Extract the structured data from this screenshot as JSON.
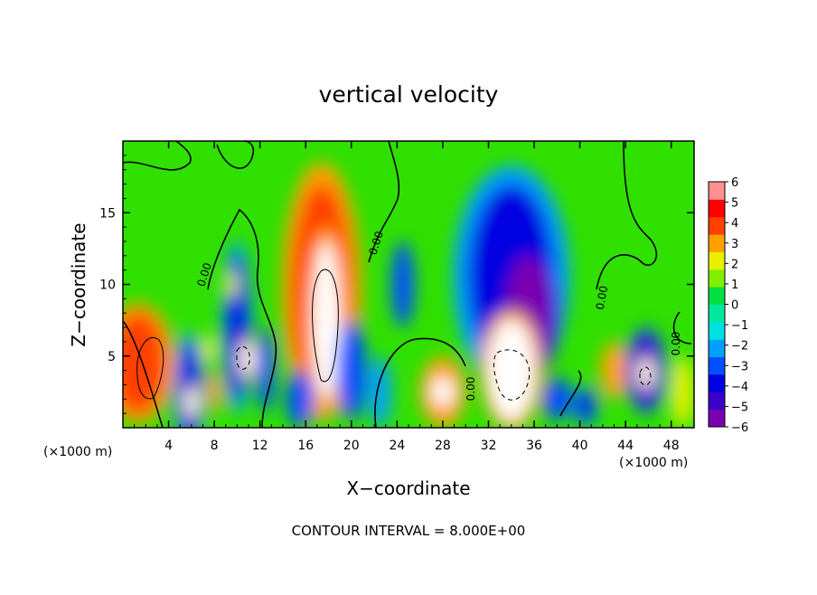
{
  "chart_data": {
    "type": "heatmap",
    "title": "vertical velocity",
    "xlabel": "X−coordinate",
    "ylabel": "Z−coordinate",
    "x_unit_label": "(×1000 m)",
    "y_unit_label": "(×1000 m)",
    "xlim": [
      0,
      50
    ],
    "ylim": [
      0,
      20
    ],
    "x_ticks": [
      4,
      8,
      12,
      16,
      20,
      24,
      28,
      32,
      36,
      40,
      44,
      48
    ],
    "y_ticks": [
      5,
      10,
      15
    ],
    "colorbar": {
      "min": -6,
      "max": 6,
      "ticks": [
        6,
        5,
        4,
        3,
        2,
        1,
        0,
        -1,
        -2,
        -3,
        -4,
        -5,
        -6
      ],
      "tick_labels": [
        "6",
        "5",
        "4",
        "3",
        "2",
        "1",
        "0",
        "−1",
        "−2",
        "−3",
        "−4",
        "−5",
        "−6"
      ],
      "colors": [
        "#7a00b0",
        "#3a00c8",
        "#0000e0",
        "#0050ff",
        "#00a0ff",
        "#00e0e0",
        "#00e8a0",
        "#00e040",
        "#80f000",
        "#e8f000",
        "#ffa000",
        "#ff4000",
        "#ff0000",
        "#ff9090"
      ]
    },
    "contour_interval_label": "CONTOUR INTERVAL = 8.000E+00",
    "contour_labels": [
      "0.00",
      "0.00",
      "0.00",
      "0.00",
      "0.00"
    ],
    "cells": [
      {
        "x": 2,
        "z": 4.5,
        "w": -0.0,
        "sx": 1.6,
        "sz": 2.5,
        "v": 6
      },
      {
        "x": 1.3,
        "z": 4.5,
        "sx": 2.4,
        "sz": 3.5,
        "v": 5
      },
      {
        "x": 5.8,
        "z": 2.5,
        "sx": 1.0,
        "sz": 3.5,
        "v": -4
      },
      {
        "x": 6.0,
        "z": 1.8,
        "sx": 0.5,
        "sz": 1.0,
        "v": 6
      },
      {
        "x": 8.0,
        "z": 2.5,
        "sx": 0.6,
        "sz": 1.5,
        "v": 4
      },
      {
        "x": 7.5,
        "z": 5.5,
        "sx": 0.6,
        "sz": 1.0,
        "v": 3
      },
      {
        "x": 10.0,
        "z": 7.0,
        "sx": 1.0,
        "sz": 5.0,
        "v": -4
      },
      {
        "x": 10.9,
        "z": 4.8,
        "sx": 0.6,
        "sz": 1.2,
        "v": 6
      },
      {
        "x": 12.5,
        "z": 4.0,
        "sx": 0.8,
        "sz": 3.0,
        "v": -3
      },
      {
        "x": 17.4,
        "z": 9.5,
        "sx": 2.6,
        "sz": 7.5,
        "v": 5
      },
      {
        "x": 17.8,
        "z": 7.5,
        "sx": 1.2,
        "sz": 5.5,
        "v": 6
      },
      {
        "x": 15.5,
        "z": 2.0,
        "sx": 1.2,
        "sz": 2.0,
        "v": -3
      },
      {
        "x": 20.0,
        "z": 4.0,
        "sx": 1.3,
        "sz": 3.5,
        "v": -3
      },
      {
        "x": 22.5,
        "z": 2.5,
        "sx": 1.0,
        "sz": 2.5,
        "v": -2
      },
      {
        "x": 24.5,
        "z": 10.0,
        "sx": 1.0,
        "sz": 3.0,
        "v": -3
      },
      {
        "x": 28.0,
        "z": 2.5,
        "sx": 2.0,
        "sz": 2.5,
        "v": 4
      },
      {
        "x": 28.0,
        "z": 2.5,
        "sx": 1.0,
        "sz": 1.0,
        "v": 6
      },
      {
        "x": 34.0,
        "z": 10.5,
        "sx": 3.8,
        "sz": 6.5,
        "v": -4
      },
      {
        "x": 35.5,
        "z": 8.0,
        "sx": 2.0,
        "sz": 4.0,
        "v": -6
      },
      {
        "x": 34.0,
        "z": 4.0,
        "sx": 2.0,
        "sz": 3.5,
        "v": 6
      },
      {
        "x": 38.0,
        "z": 2.0,
        "sx": 1.3,
        "sz": 1.5,
        "v": -3
      },
      {
        "x": 40.5,
        "z": 1.5,
        "sx": 0.8,
        "sz": 1.2,
        "v": -4
      },
      {
        "x": 43.0,
        "z": 4.0,
        "sx": 1.2,
        "sz": 2.0,
        "v": 4
      },
      {
        "x": 45.8,
        "z": 4.0,
        "sx": 1.3,
        "sz": 2.5,
        "v": -5
      },
      {
        "x": 45.8,
        "z": 3.8,
        "sx": 0.6,
        "sz": 1.0,
        "v": 6
      },
      {
        "x": 49.0,
        "z": 2.5,
        "sx": 1.0,
        "sz": 2.5,
        "v": 3
      },
      {
        "x": 9.5,
        "z": 10.0,
        "sx": 0.5,
        "sz": 1.0,
        "v": 3
      }
    ]
  }
}
